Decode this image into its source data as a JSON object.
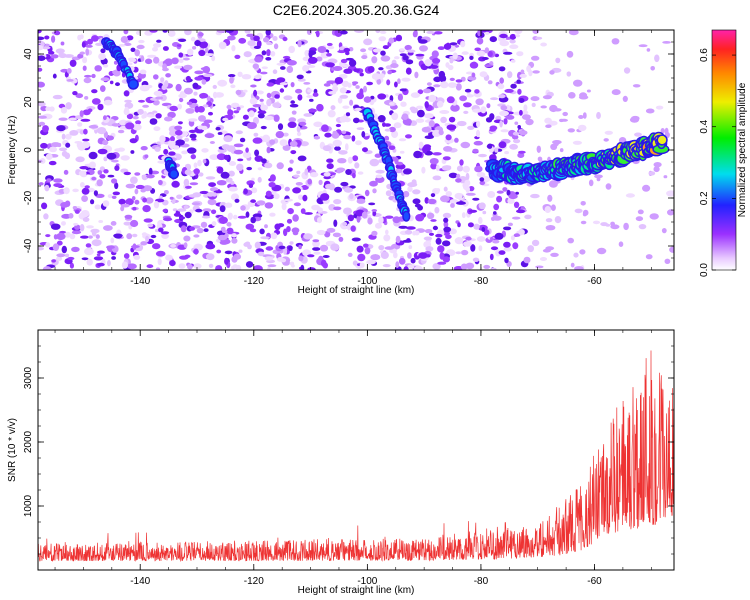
{
  "title": "C2E6.2024.305.20.36.G24",
  "chart_data": [
    {
      "type": "heatmap",
      "name": "spectrogram",
      "xlabel": "Height of straight line (km)",
      "ylabel": "Frequency (Hz)",
      "xlim": [
        -158,
        -46
      ],
      "ylim": [
        -50,
        50
      ],
      "xticks": [
        -140,
        -120,
        -100,
        -80,
        -60
      ],
      "yticks": [
        -40,
        -20,
        0,
        20,
        40
      ],
      "colorbar": {
        "label": "Normalized spectral amplitude",
        "range": [
          0,
          0.67
        ],
        "ticks": [
          0.0,
          0.2,
          0.4,
          0.6
        ],
        "tick_labels": [
          "0.0",
          "0.2",
          "0.4",
          "0.6"
        ]
      },
      "features": [
        {
          "desc": "meteor trail segment",
          "points": [
            [
              -146,
              45
            ],
            [
              -144,
              40
            ],
            [
              -141,
              27
            ]
          ]
        },
        {
          "desc": "meteor trail segment",
          "points": [
            [
              -135,
              -5
            ],
            [
              -134,
              -10
            ]
          ]
        },
        {
          "desc": "meteor trail segment",
          "points": [
            [
              -100,
              15
            ],
            [
              -97,
              0
            ],
            [
              -95,
              -15
            ],
            [
              -93,
              -28
            ]
          ]
        },
        {
          "desc": "head echo trace",
          "points": [
            [
              -78,
              -8
            ],
            [
              -72,
              -10
            ],
            [
              -66,
              -8
            ],
            [
              -60,
              -5
            ],
            [
              -54,
              -1
            ],
            [
              -48,
              3
            ]
          ]
        }
      ]
    },
    {
      "type": "line",
      "name": "snr",
      "xlabel": "Height of straight line (km)",
      "ylabel": "SNR (10 * v/v)",
      "xlim": [
        -158,
        -46
      ],
      "ylim": [
        0,
        3750
      ],
      "xticks": [
        -140,
        -120,
        -100,
        -80,
        -60
      ],
      "yticks": [
        1000,
        2000,
        3000
      ],
      "color": "#ee3333",
      "envelope": [
        {
          "x": -158,
          "base": 230,
          "amp": 150
        },
        {
          "x": -120,
          "base": 250,
          "amp": 180
        },
        {
          "x": -90,
          "base": 270,
          "amp": 200
        },
        {
          "x": -80,
          "base": 320,
          "amp": 260
        },
        {
          "x": -76,
          "base": 360,
          "amp": 320
        },
        {
          "x": -70,
          "base": 380,
          "amp": 300
        },
        {
          "x": -66,
          "base": 500,
          "amp": 450
        },
        {
          "x": -62,
          "base": 700,
          "amp": 650
        },
        {
          "x": -58,
          "base": 1100,
          "amp": 900
        },
        {
          "x": -54,
          "base": 1400,
          "amp": 1300
        },
        {
          "x": -50,
          "base": 1700,
          "amp": 1700
        },
        {
          "x": -47,
          "base": 1500,
          "amp": 1200
        }
      ]
    }
  ]
}
